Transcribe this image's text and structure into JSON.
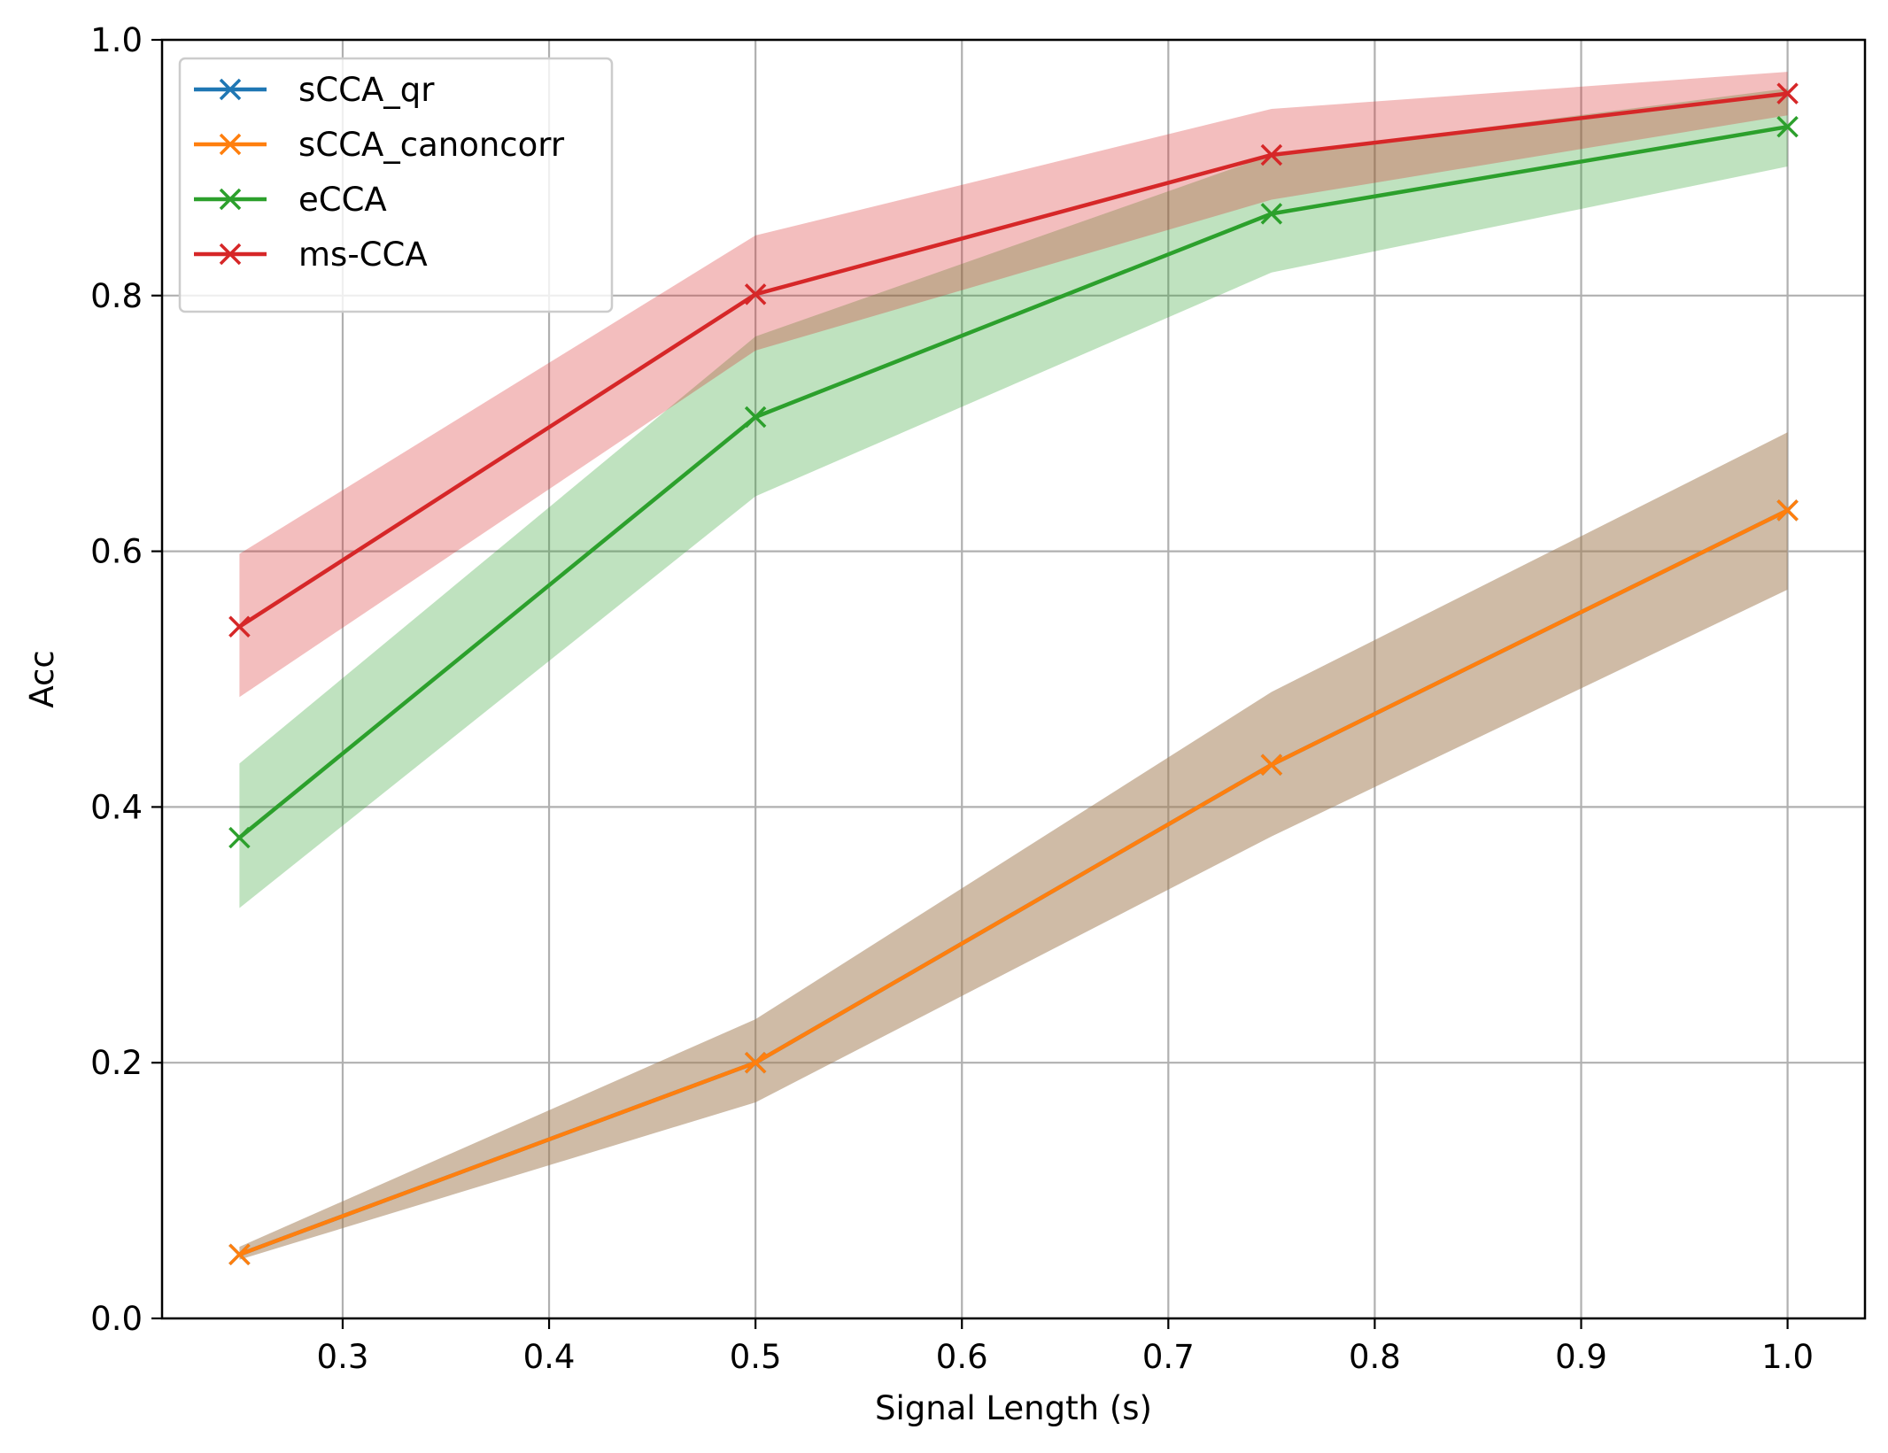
{
  "chart_data": {
    "type": "line",
    "title": "",
    "xlabel": "Signal Length (s)",
    "ylabel": "Acc",
    "xlim": [
      0.2125,
      1.0375
    ],
    "ylim": [
      0.0,
      1.0
    ],
    "xticks": [
      0.3,
      0.4,
      0.5,
      0.6,
      0.7,
      0.8,
      0.9,
      1.0
    ],
    "xtick_labels": [
      "0.3",
      "0.4",
      "0.5",
      "0.6",
      "0.7",
      "0.8",
      "0.9",
      "1.0"
    ],
    "yticks": [
      0.0,
      0.2,
      0.4,
      0.6,
      0.8,
      1.0
    ],
    "ytick_labels": [
      "0.0",
      "0.2",
      "0.4",
      "0.6",
      "0.8",
      "1.0"
    ],
    "grid": true,
    "legend_position": "upper-left",
    "marker": "x",
    "x": [
      0.25,
      0.5,
      0.75,
      1.0
    ],
    "series": [
      {
        "name": "sCCA_qr",
        "color": "#1f77b4",
        "values": [
          0.05,
          0.2,
          0.433,
          0.632
        ],
        "band_lower": [
          0.046,
          0.169,
          0.377,
          0.57
        ],
        "band_upper": [
          0.056,
          0.234,
          0.49,
          0.693
        ]
      },
      {
        "name": "sCCA_canoncorr",
        "color": "#ff7f0e",
        "values": [
          0.05,
          0.2,
          0.433,
          0.632
        ],
        "band_lower": [
          0.046,
          0.169,
          0.377,
          0.57
        ],
        "band_upper": [
          0.056,
          0.234,
          0.49,
          0.693
        ]
      },
      {
        "name": "eCCA",
        "color": "#2ca02c",
        "values": [
          0.376,
          0.705,
          0.864,
          0.932
        ],
        "band_lower": [
          0.321,
          0.643,
          0.818,
          0.901
        ],
        "band_upper": [
          0.434,
          0.768,
          0.91,
          0.962
        ]
      },
      {
        "name": "ms-CCA",
        "color": "#d62728",
        "values": [
          0.541,
          0.801,
          0.91,
          0.958
        ],
        "band_lower": [
          0.486,
          0.757,
          0.875,
          0.941
        ],
        "band_upper": [
          0.598,
          0.847,
          0.946,
          0.975
        ]
      }
    ]
  }
}
